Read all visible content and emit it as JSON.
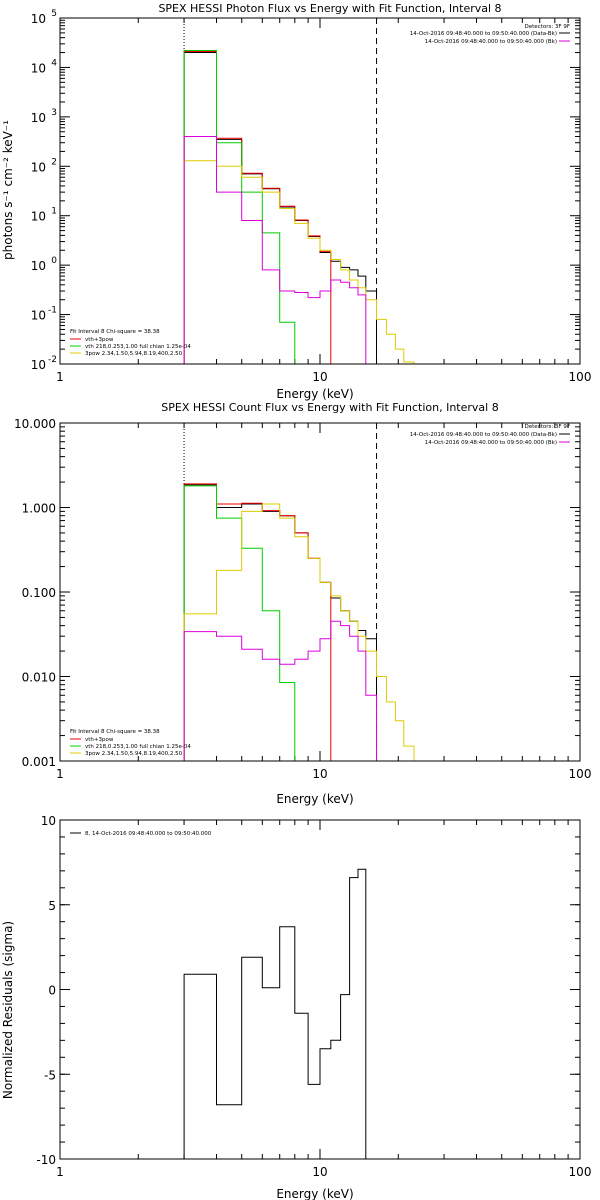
{
  "chart_data": [
    {
      "type": "line",
      "title": "SPEX HESSI Photon Flux vs Energy with Fit Function, Interval 8",
      "xlabel": "Energy (keV)",
      "ylabel": "photons s⁻¹ cm⁻² keV⁻¹",
      "xscale": "log",
      "yscale": "log",
      "xlim": [
        1,
        100
      ],
      "ylim": [
        0.01,
        100000
      ],
      "x_ticks": [
        {
          "value": 1,
          "label": "1"
        },
        {
          "value": 10,
          "label": "10"
        },
        {
          "value": 100,
          "label": "100"
        }
      ],
      "y_ticks": [
        {
          "value": 0.01,
          "base": "10",
          "exp": "-2"
        },
        {
          "value": 0.1,
          "base": "10",
          "exp": "-1"
        },
        {
          "value": 1,
          "base": "10",
          "exp": "0"
        },
        {
          "value": 10,
          "base": "10",
          "exp": "1"
        },
        {
          "value": 100,
          "base": "10",
          "exp": "2"
        },
        {
          "value": 1000,
          "base": "10",
          "exp": "3"
        },
        {
          "value": 10000,
          "base": "10",
          "exp": "4"
        },
        {
          "value": 100000,
          "base": "10",
          "exp": "5"
        }
      ],
      "vlines": [
        {
          "x": 3.0,
          "style": "dotted"
        },
        {
          "x": 16.5,
          "style": "dashed"
        }
      ],
      "header_legend": {
        "title": "Detectors: 3F 9F",
        "entries": [
          {
            "text": "14-Oct-2016 09:48:40.000 to 09:50:40.000 (Data-Bk)",
            "color": "#000000"
          },
          {
            "text": "14-Oct-2016 09:48:40.000 to 09:50:40.000 (Bk)",
            "color": "#dd00dd"
          }
        ]
      },
      "fit_legend": {
        "title": "Fit Interval  8    Chi-square = 38.38",
        "entries": [
          {
            "text": "vth+3pow",
            "color": "#ee0000"
          },
          {
            "text": "vth 218,0.253,1.00  full chian 1.25e-04",
            "color": "#00cc00"
          },
          {
            "text": "3pow 2.34,1.50,5.94,8.19,400,2.50",
            "color": "#ddcc00"
          }
        ]
      },
      "bin_edges": [
        3,
        4,
        5,
        6,
        7,
        8,
        9,
        10,
        11,
        12,
        13,
        14,
        15,
        16.5,
        18,
        19.5,
        21,
        23,
        25
      ],
      "series": [
        {
          "color": "#000000",
          "values": [
            20000,
            350,
            70,
            35,
            15,
            8,
            3.8,
            1.8,
            1.2,
            0.9,
            0.8,
            0.6,
            0.3
          ]
        },
        {
          "color": "#ee0000",
          "values": [
            21000,
            370,
            72,
            36,
            15.5,
            8.2,
            3.9,
            1.9,
            null,
            null,
            null,
            null,
            null
          ]
        },
        {
          "color": "#00cc00",
          "values": [
            22000,
            300,
            30,
            4.5,
            0.07,
            null,
            null,
            null,
            null,
            null,
            null,
            null,
            null
          ]
        },
        {
          "color": "#ddcc00",
          "values": [
            130,
            100,
            60,
            30,
            14,
            7,
            3.5,
            2,
            1.3,
            0.8,
            0.5,
            0.35,
            0.2,
            0.08,
            0.04,
            0.02,
            0.011,
            0.01
          ]
        },
        {
          "color": "#dd00dd",
          "values": [
            400,
            30,
            8,
            0.8,
            0.3,
            0.28,
            0.22,
            0.3,
            0.5,
            0.45,
            0.35,
            0.25,
            0.01
          ]
        }
      ]
    },
    {
      "type": "line",
      "title": "SPEX HESSI Count Flux vs Energy with Fit Function, Interval 8",
      "xlabel": "Energy (keV)",
      "ylabel": "",
      "xscale": "log",
      "yscale": "log",
      "xlim": [
        1,
        100
      ],
      "ylim": [
        0.001,
        10
      ],
      "x_ticks": [
        {
          "value": 1,
          "label": "1"
        },
        {
          "value": 10,
          "label": "10"
        },
        {
          "value": 100,
          "label": "100"
        }
      ],
      "y_ticks": [
        {
          "value": 0.001,
          "label": "0.001"
        },
        {
          "value": 0.01,
          "label": "0.010"
        },
        {
          "value": 0.1,
          "label": "0.100"
        },
        {
          "value": 1,
          "label": "1.000"
        },
        {
          "value": 10,
          "label": "10.000"
        }
      ],
      "vlines": [
        {
          "x": 3.0,
          "style": "dotted"
        },
        {
          "x": 16.5,
          "style": "dashed"
        }
      ],
      "header_legend": {
        "title": "Detectors: 3F 9F",
        "entries": [
          {
            "text": "14-Oct-2016 09:48:40.000 to 09:50:40.000 (Data-Bk)",
            "color": "#000000"
          },
          {
            "text": "14-Oct-2016 09:48:40.000 to 09:50:40.000 (Bk)",
            "color": "#dd00dd"
          }
        ]
      },
      "fit_legend": {
        "title": "Fit Interval  8    Chi-square = 38.38",
        "entries": [
          {
            "text": "vth+3pow",
            "color": "#ee0000"
          },
          {
            "text": "vth 218,0.253,1.00  full chian 1.25e-04",
            "color": "#00cc00"
          },
          {
            "text": "3pow 2.34,1.50,5.94,8.19,400,2.50",
            "color": "#ddcc00"
          }
        ]
      },
      "bin_edges": [
        3,
        4,
        5,
        6,
        7,
        8,
        9,
        10,
        11,
        12,
        13,
        14,
        15,
        16.5,
        18,
        19.5,
        21,
        23,
        25
      ],
      "series": [
        {
          "color": "#000000",
          "values": [
            1.85,
            1.0,
            1.1,
            0.9,
            0.8,
            0.5,
            0.25,
            0.13,
            0.085,
            0.06,
            0.045,
            0.035,
            0.028
          ]
        },
        {
          "color": "#ee0000",
          "values": [
            1.9,
            1.1,
            1.12,
            0.92,
            0.8,
            0.5,
            0.25,
            0.13,
            null,
            null,
            null,
            null,
            null
          ]
        },
        {
          "color": "#00cc00",
          "values": [
            1.8,
            0.75,
            0.33,
            0.06,
            0.0085,
            null,
            null,
            null,
            null,
            null,
            null,
            null,
            null
          ]
        },
        {
          "color": "#ddcc00",
          "values": [
            0.055,
            0.18,
            0.9,
            1.1,
            0.75,
            0.45,
            0.25,
            0.13,
            0.09,
            0.06,
            0.045,
            0.03,
            0.02,
            0.01,
            0.005,
            0.003,
            0.0015,
            0.001
          ]
        },
        {
          "color": "#dd00dd",
          "values": [
            0.034,
            0.03,
            0.021,
            0.016,
            0.014,
            0.016,
            0.02,
            0.028,
            0.045,
            0.04,
            0.03,
            0.02,
            0.006
          ]
        }
      ]
    },
    {
      "type": "line",
      "title": "",
      "xlabel": "Energy (keV)",
      "ylabel": "Normalized Residuals (sigma)",
      "xscale": "log",
      "yscale": "linear",
      "xlim": [
        1,
        100
      ],
      "ylim": [
        -10,
        10
      ],
      "x_ticks": [
        {
          "value": 1,
          "label": "1"
        },
        {
          "value": 10,
          "label": "10"
        },
        {
          "value": 100,
          "label": "100"
        }
      ],
      "y_ticks": [
        {
          "value": -10,
          "label": "-10"
        },
        {
          "value": -5,
          "label": "-5"
        },
        {
          "value": 0,
          "label": "0"
        },
        {
          "value": 5,
          "label": "5"
        },
        {
          "value": 10,
          "label": "10"
        }
      ],
      "legend": {
        "entries": [
          {
            "text": "8, 14-Oct-2016 09:48:40.000 to 09:50:40.000",
            "color": "#000000"
          }
        ]
      },
      "bin_edges": [
        3,
        4,
        5,
        6,
        7,
        8,
        9,
        10,
        11,
        12,
        13,
        14,
        15,
        16.5
      ],
      "series": [
        {
          "color": "#000000",
          "values": [
            0.9,
            -6.8,
            1.9,
            0.1,
            3.7,
            -1.4,
            -5.6,
            -3.5,
            -3.0,
            -0.3,
            6.6,
            7.1,
            null
          ]
        }
      ]
    }
  ]
}
